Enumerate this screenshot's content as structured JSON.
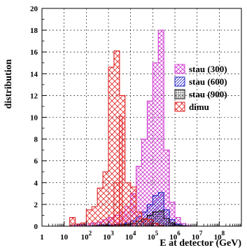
{
  "chart_data": {
    "type": "bar",
    "xlabel": "E at detector (GeV)",
    "ylabel": "distribution",
    "xscale": "log",
    "xlim": [
      1,
      1000000000
    ],
    "ylim": [
      0,
      20
    ],
    "x_ticks": [
      {
        "value": 1,
        "base": "1",
        "exp": ""
      },
      {
        "value": 10,
        "base": "10",
        "exp": ""
      },
      {
        "value": 100,
        "base": "10",
        "exp": "2"
      },
      {
        "value": 1000,
        "base": "10",
        "exp": "3"
      },
      {
        "value": 10000,
        "base": "10",
        "exp": "4"
      },
      {
        "value": 100000,
        "base": "10",
        "exp": "5"
      },
      {
        "value": 1000000,
        "base": "10",
        "exp": "6"
      },
      {
        "value": 10000000,
        "base": "10",
        "exp": "7"
      },
      {
        "value": 100000000,
        "base": "10",
        "exp": "8"
      }
    ],
    "y_ticks": [
      0,
      2,
      4,
      6,
      8,
      10,
      12,
      14,
      16,
      18,
      20
    ],
    "grid": true,
    "legend_position": "right",
    "bin_log10_edges": [
      0.0,
      0.25,
      0.5,
      0.75,
      1.0,
      1.25,
      1.5,
      1.75,
      2.0,
      2.25,
      2.5,
      2.75,
      3.0,
      3.25,
      3.5,
      3.75,
      4.0,
      4.25,
      4.5,
      4.75,
      5.0,
      5.25,
      5.5,
      5.75,
      6.0,
      6.25,
      6.5,
      6.75,
      7.0,
      7.25,
      7.5
    ],
    "series": [
      {
        "name": "stau (300)",
        "color": "#d040d0",
        "pattern": "cross",
        "values": [
          0,
          0,
          0,
          0,
          0,
          0.05,
          0.1,
          0.15,
          0.2,
          0.3,
          0.4,
          0.6,
          0.8,
          1.0,
          1.3,
          1.8,
          3.0,
          5.5,
          8.0,
          11.5,
          15.0,
          18.0,
          7.0,
          2.2,
          0.8,
          0.25,
          0.05,
          0,
          0,
          0
        ]
      },
      {
        "name": "stau (600)",
        "color": "#2020c0",
        "pattern": "diag",
        "values": [
          0,
          0,
          0,
          0,
          0,
          0,
          0,
          0,
          0.03,
          0.05,
          0.08,
          0.1,
          0.12,
          0.15,
          0.2,
          0.3,
          0.5,
          0.9,
          1.3,
          2.0,
          2.8,
          3.1,
          1.5,
          0.6,
          0.2,
          0.05,
          0,
          0,
          0,
          0
        ]
      },
      {
        "name": "stau (900)",
        "color": "#000000",
        "pattern": "grid",
        "values": [
          0,
          0,
          0,
          0,
          0,
          0,
          0,
          0,
          0,
          0.02,
          0.04,
          0.05,
          0.06,
          0.08,
          0.1,
          0.15,
          0.25,
          0.45,
          0.65,
          1.0,
          1.3,
          1.4,
          0.7,
          0.3,
          0.1,
          0.03,
          0,
          0,
          0,
          0
        ]
      },
      {
        "name": "dimu",
        "color": "#e02020",
        "pattern": "cross",
        "values": [
          0,
          0,
          0,
          0,
          0,
          0.8,
          0.2,
          0.3,
          1.5,
          1.8,
          3.5,
          5.0,
          14.6,
          16.1,
          12.0,
          4.0,
          3.6,
          1.3,
          0.7,
          0.6,
          0.25,
          0.05,
          0,
          0,
          0,
          0,
          0,
          0,
          0,
          0
        ]
      }
    ],
    "highlight_bins": [
      {
        "series": "dimu",
        "log10_from": 3.25,
        "log10_to": 3.5,
        "value": 4.0
      },
      {
        "series": "dimu",
        "log10_from": 3.5,
        "log10_to": 3.625,
        "value": 10.1
      }
    ]
  }
}
